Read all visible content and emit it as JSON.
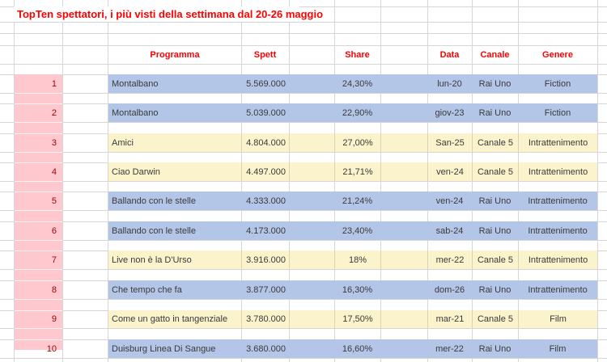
{
  "sheet": {
    "title": "TopTen spettatori, i più visti della settimana dal 20-26 maggio",
    "columns": [
      "Programma",
      "Spett",
      "Share",
      "Data",
      "Canale",
      "Genere"
    ],
    "rows": [
      {
        "rank": "1",
        "programma": "Montalbano",
        "spett": "5.569.000",
        "share": "24,30%",
        "data": "lun-20",
        "canale": "Rai Uno",
        "genere": "Fiction",
        "highlight": "blue"
      },
      {
        "rank": "2",
        "programma": "Montalbano",
        "spett": "5.039.000",
        "share": "22,90%",
        "data": "giov-23",
        "canale": "Rai Uno",
        "genere": "Fiction",
        "highlight": "blue"
      },
      {
        "rank": "3",
        "programma": "Amici",
        "spett": "4.804.000",
        "share": "27,00%",
        "data": "San-25",
        "canale": "Canale 5",
        "genere": "Intrattenimento",
        "highlight": "yellow"
      },
      {
        "rank": "4",
        "programma": "Ciao Darwin",
        "spett": "4.497.000",
        "share": "21,71%",
        "data": "ven-24",
        "canale": "Canale 5",
        "genere": "Intrattenimento",
        "highlight": "yellow"
      },
      {
        "rank": "5",
        "programma": "Ballando con le stelle",
        "spett": "4.333.000",
        "share": "21,24%",
        "data": "ven-24",
        "canale": "Rai Uno",
        "genere": "Intrattenimento",
        "highlight": "blue"
      },
      {
        "rank": "6",
        "programma": "Ballando con le stelle",
        "spett": "4.173.000",
        "share": "23,40%",
        "data": "sab-24",
        "canale": "Rai Uno",
        "genere": "Intrattenimento",
        "highlight": "blue"
      },
      {
        "rank": "7",
        "programma": "Live non è la D'Urso",
        "spett": "3.916.000",
        "share": "18%",
        "data": "mer-22",
        "canale": "Canale 5",
        "genere": "Intrattenimento",
        "highlight": "yellow"
      },
      {
        "rank": "8",
        "programma": "Che tempo che fa",
        "spett": "3.877.000",
        "share": "16,30%",
        "data": "dom-26",
        "canale": "Rai Uno",
        "genere": "Intrattenimento",
        "highlight": "blue"
      },
      {
        "rank": "9",
        "programma": "Come un gatto in tangenziale",
        "spett": "3.780.000",
        "share": "17,50%",
        "data": "mar-21",
        "canale": "Canale 5",
        "genere": "Film",
        "highlight": "yellow"
      },
      {
        "rank": "10",
        "programma": "Duisburg Linea Di Sangue",
        "spett": "3.680.000",
        "share": "16,60%",
        "data": "mer-22",
        "canale": "Rai Uno",
        "genere": "Film",
        "highlight": "blue"
      }
    ],
    "colors": {
      "blue_row": "#B4C6E7",
      "yellow_row": "#FAF3CB",
      "rank_bg": "#FFC7CE",
      "rank_text": "#9C0006",
      "title_red": "#FF0000",
      "grid": "#D6D6D6",
      "yellow_grid": "#D9D4B8",
      "cell_text": "#3A3A3A"
    }
  }
}
